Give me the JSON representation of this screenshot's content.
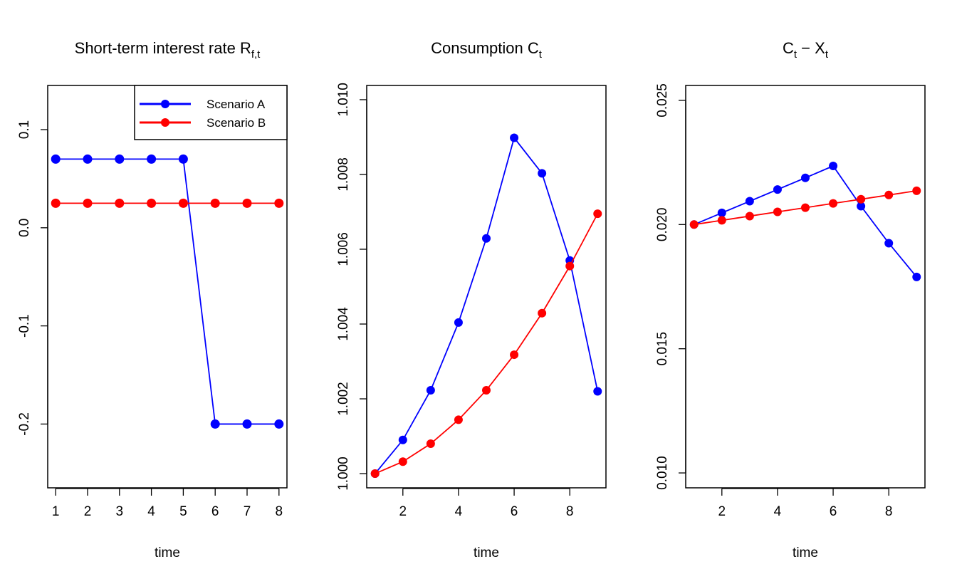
{
  "colors": {
    "scenario_a": "#0000FF",
    "scenario_b": "#FF0000",
    "axis": "#000000"
  },
  "chart_data": [
    {
      "type": "line",
      "title": "Short-term interest rate R",
      "title_subscript": "f,t",
      "xlabel": "time",
      "ylabel": "",
      "x": [
        1,
        2,
        3,
        4,
        5,
        6,
        7,
        8
      ],
      "xticks": [
        1,
        2,
        3,
        4,
        5,
        6,
        7,
        8
      ],
      "xlim": [
        0.75,
        8.25
      ],
      "ylim": [
        -0.265,
        0.145
      ],
      "yticks": [
        0.1,
        0.0,
        -0.1,
        -0.2
      ],
      "ytick_labels": [
        "0.1",
        "0.0",
        "-0.1",
        "-0.2"
      ],
      "grid": false,
      "legend": {
        "position": "top-right",
        "entries": [
          "Scenario A",
          "Scenario B"
        ]
      },
      "series": [
        {
          "name": "Scenario A",
          "color": "#0000FF",
          "values": [
            0.07,
            0.07,
            0.07,
            0.07,
            0.07,
            -0.2,
            -0.2,
            -0.2
          ]
        },
        {
          "name": "Scenario B",
          "color": "#FF0000",
          "values": [
            0.025,
            0.025,
            0.025,
            0.025,
            0.025,
            0.025,
            0.025,
            0.025
          ]
        }
      ]
    },
    {
      "type": "line",
      "title": "Consumption C",
      "title_subscript": "t",
      "xlabel": "time",
      "ylabel": "",
      "x": [
        1,
        2,
        3,
        4,
        5,
        6,
        7,
        8,
        9
      ],
      "xticks": [
        2,
        4,
        6,
        8
      ],
      "xlim": [
        0.7,
        9.3
      ],
      "ylim": [
        0.99962,
        1.01038
      ],
      "yticks": [
        1.0,
        1.002,
        1.004,
        1.006,
        1.008,
        1.01
      ],
      "ytick_labels": [
        "1.000",
        "1.002",
        "1.004",
        "1.006",
        "1.008",
        "1.010"
      ],
      "grid": false,
      "series": [
        {
          "name": "Scenario A",
          "color": "#0000FF",
          "values": [
            1.0,
            1.0009,
            1.00223,
            1.00404,
            1.00629,
            1.00898,
            1.00803,
            1.0057,
            1.0022
          ]
        },
        {
          "name": "Scenario B",
          "color": "#FF0000",
          "values": [
            1.0,
            1.00032,
            1.0008,
            1.00144,
            1.00223,
            1.00318,
            1.00429,
            1.00555,
            1.00695
          ]
        }
      ]
    },
    {
      "type": "line",
      "title": "C",
      "title_subscript": "t",
      "title_rest": " − X",
      "title_rest_subscript": "t",
      "xlabel": "time",
      "ylabel": "",
      "x": [
        1,
        2,
        3,
        4,
        5,
        6,
        7,
        8,
        9
      ],
      "xticks": [
        2,
        4,
        6,
        8
      ],
      "xlim": [
        0.7,
        9.3
      ],
      "ylim": [
        0.0094,
        0.0256
      ],
      "yticks": [
        0.01,
        0.015,
        0.02,
        0.025
      ],
      "ytick_labels": [
        "0.010",
        "0.015",
        "0.020",
        "0.025"
      ],
      "grid": false,
      "series": [
        {
          "name": "Scenario A",
          "color": "#0000FF",
          "values": [
            0.02,
            0.02047,
            0.02094,
            0.02141,
            0.02188,
            0.02236,
            0.02074,
            0.01925,
            0.01789
          ]
        },
        {
          "name": "Scenario B",
          "color": "#FF0000",
          "values": [
            0.02,
            0.02017,
            0.02034,
            0.02051,
            0.02068,
            0.02085,
            0.02102,
            0.02119,
            0.02136
          ]
        }
      ]
    }
  ]
}
